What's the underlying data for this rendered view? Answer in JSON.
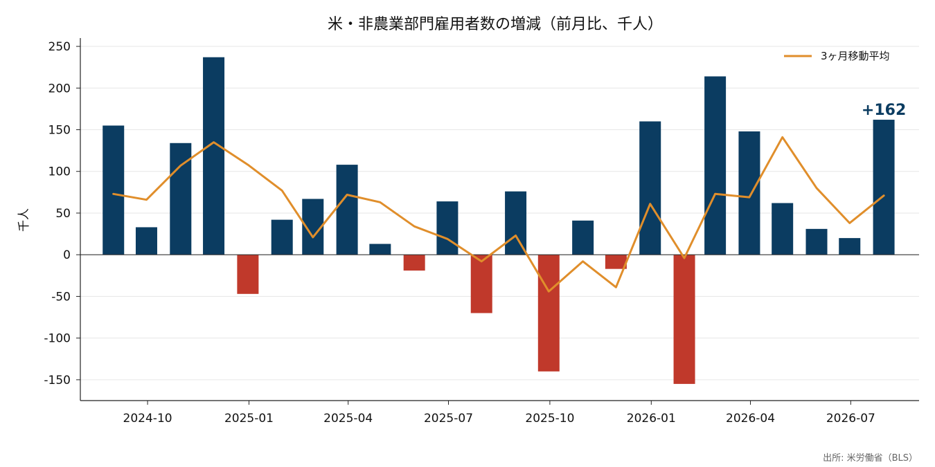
{
  "chart_data": {
    "type": "bar",
    "title": "米・非農業部門雇用者数の増減（前月比、千人）",
    "ylabel": "千人",
    "xlabel": "",
    "ylim": [
      -175,
      260
    ],
    "yticks": [
      250,
      200,
      150,
      100,
      50,
      0,
      -50,
      -100,
      -150
    ],
    "ytick_labels": [
      "250",
      "200",
      "150",
      "100",
      "50",
      "0",
      "-50",
      "-100",
      "-150"
    ],
    "xlim": [
      "2024-08-01",
      "2026-09-01"
    ],
    "xticks": [
      "2024-10-01",
      "2025-01-01",
      "2025-04-01",
      "2025-07-01",
      "2025-10-01",
      "2026-01-01",
      "2026-04-01",
      "2026-07-01"
    ],
    "xtick_labels": [
      "2024-10",
      "2025-01",
      "2025-04",
      "2025-07",
      "2025-10",
      "2026-01",
      "2026-04",
      "2026-07"
    ],
    "grid": "horizontal",
    "legend_position": "top-right",
    "colors": {
      "positive": "#0b3c61",
      "negative": "#c0392b",
      "line": "#e08e2b",
      "annotation": "#0b3c61"
    },
    "series": [
      {
        "kind": "bar",
        "x": [
          "2024-08-31",
          "2024-09-30",
          "2024-10-31",
          "2024-11-30",
          "2024-12-31",
          "2025-01-31",
          "2025-02-28",
          "2025-03-31",
          "2025-04-30",
          "2025-05-31",
          "2025-06-30",
          "2025-07-31",
          "2025-08-31",
          "2025-09-30",
          "2025-10-31",
          "2025-11-30",
          "2025-12-31",
          "2026-01-31",
          "2026-02-28",
          "2026-03-31",
          "2026-04-30",
          "2026-05-31",
          "2026-06-30",
          "2026-07-31"
        ],
        "values": [
          155,
          33,
          134,
          237,
          -47,
          42,
          67,
          108,
          13,
          -19,
          64,
          -70,
          76,
          -140,
          41,
          -17,
          160,
          -155,
          214,
          148,
          62,
          31,
          20,
          162
        ]
      },
      {
        "kind": "line",
        "name": "3ヶ月移動平均",
        "x": [
          "2024-08-31",
          "2024-09-30",
          "2024-10-31",
          "2024-11-30",
          "2024-12-31",
          "2025-01-31",
          "2025-02-28",
          "2025-03-31",
          "2025-04-30",
          "2025-05-31",
          "2025-06-30",
          "2025-07-31",
          "2025-08-31",
          "2025-09-30",
          "2025-10-31",
          "2025-11-30",
          "2025-12-31",
          "2026-01-31",
          "2026-02-28",
          "2026-03-31",
          "2026-04-30",
          "2026-05-31",
          "2026-06-30",
          "2026-07-31"
        ],
        "values": [
          73,
          66,
          107,
          135,
          108,
          77,
          21,
          72,
          63,
          34,
          19,
          -8,
          23,
          -44,
          -8,
          -39,
          61,
          -4,
          73,
          69,
          141,
          80,
          38,
          71
        ]
      }
    ],
    "annotation": {
      "text": "+162",
      "x": "2026-07-31",
      "y": 162
    }
  },
  "source": "出所: 米労働省（BLS）"
}
